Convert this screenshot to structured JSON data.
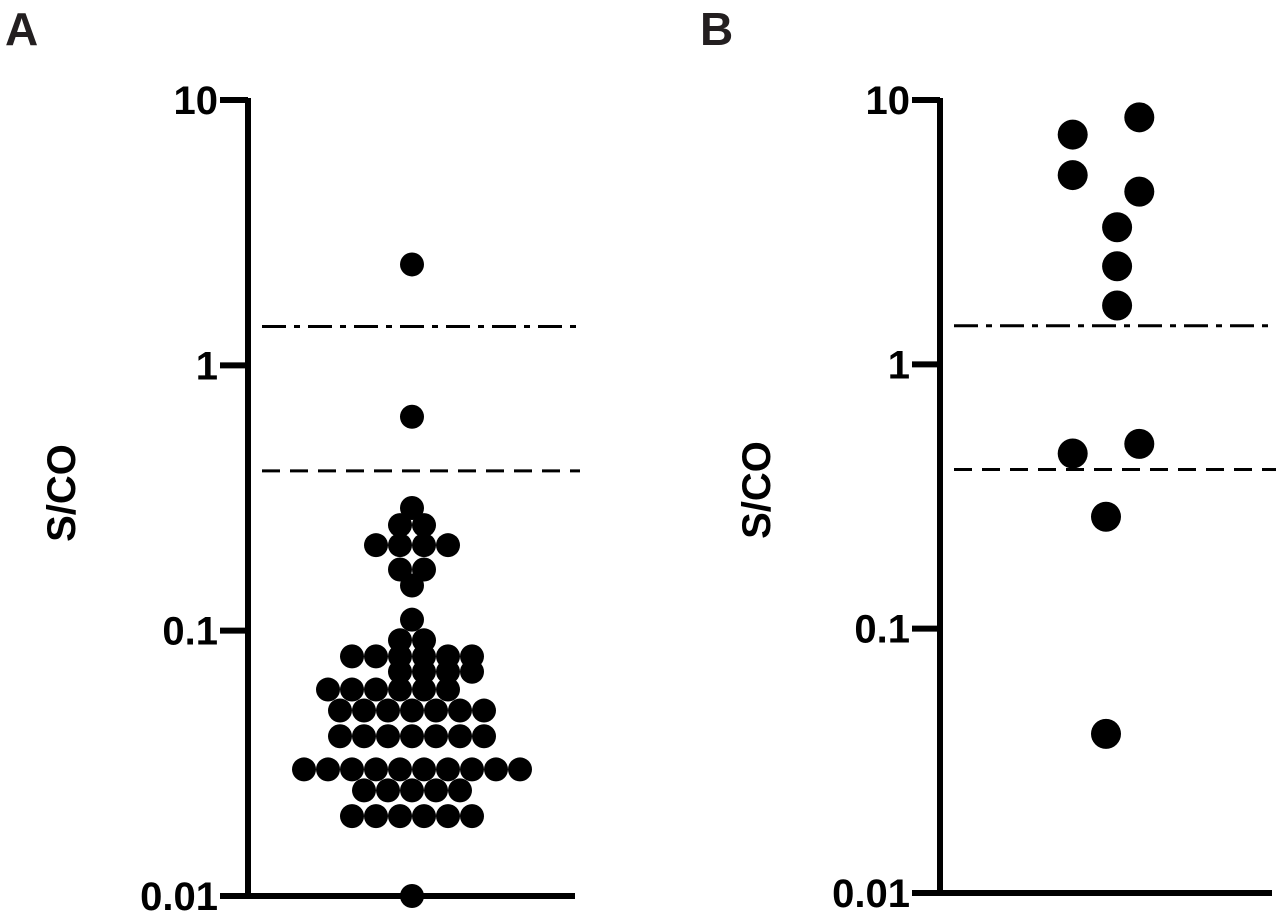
{
  "chart_data": [
    {
      "panel": "A",
      "type": "scatter",
      "ylabel": "S/CO",
      "yscale": "log",
      "ylim": [
        0.01,
        10
      ],
      "ytick_labels": [
        "10",
        "1",
        "0.1",
        "0.01"
      ],
      "yticks": [
        10,
        1,
        0.1,
        0.01
      ],
      "reference_lines": [
        {
          "style": "dash-dot",
          "y": 1.4
        },
        {
          "style": "dashed",
          "y": 0.4
        }
      ],
      "points": [
        {
          "x": 0,
          "y": 2.4
        },
        {
          "x": 0,
          "y": 0.64
        },
        {
          "x": 0,
          "y": 0.29
        },
        {
          "x": -0.3,
          "y": 0.25
        },
        {
          "x": 0.3,
          "y": 0.25
        },
        {
          "x": -0.9,
          "y": 0.21
        },
        {
          "x": -0.3,
          "y": 0.21
        },
        {
          "x": 0.3,
          "y": 0.21
        },
        {
          "x": 0.9,
          "y": 0.21
        },
        {
          "x": -0.3,
          "y": 0.17
        },
        {
          "x": 0.3,
          "y": 0.17
        },
        {
          "x": 0,
          "y": 0.148
        },
        {
          "x": 0,
          "y": 0.11
        },
        {
          "x": -0.3,
          "y": 0.092
        },
        {
          "x": 0.3,
          "y": 0.092
        },
        {
          "x": -1.5,
          "y": 0.08
        },
        {
          "x": -0.9,
          "y": 0.08
        },
        {
          "x": -0.3,
          "y": 0.08
        },
        {
          "x": 0.3,
          "y": 0.08
        },
        {
          "x": 0.9,
          "y": 0.08
        },
        {
          "x": 1.5,
          "y": 0.08
        },
        {
          "x": -0.3,
          "y": 0.07
        },
        {
          "x": 0.3,
          "y": 0.07
        },
        {
          "x": 0.9,
          "y": 0.07
        },
        {
          "x": 1.5,
          "y": 0.07
        },
        {
          "x": -2.1,
          "y": 0.06
        },
        {
          "x": -1.5,
          "y": 0.06
        },
        {
          "x": -0.9,
          "y": 0.06
        },
        {
          "x": -0.3,
          "y": 0.06
        },
        {
          "x": 0.3,
          "y": 0.06
        },
        {
          "x": 0.9,
          "y": 0.06
        },
        {
          "x": -1.8,
          "y": 0.05
        },
        {
          "x": -1.2,
          "y": 0.05
        },
        {
          "x": -0.6,
          "y": 0.05
        },
        {
          "x": 0,
          "y": 0.05
        },
        {
          "x": 0.6,
          "y": 0.05
        },
        {
          "x": 1.2,
          "y": 0.05
        },
        {
          "x": 1.8,
          "y": 0.05
        },
        {
          "x": -1.8,
          "y": 0.04
        },
        {
          "x": -1.2,
          "y": 0.04
        },
        {
          "x": -0.6,
          "y": 0.04
        },
        {
          "x": 0,
          "y": 0.04
        },
        {
          "x": 0.6,
          "y": 0.04
        },
        {
          "x": 1.2,
          "y": 0.04
        },
        {
          "x": 1.8,
          "y": 0.04
        },
        {
          "x": -2.7,
          "y": 0.03
        },
        {
          "x": -2.1,
          "y": 0.03
        },
        {
          "x": -1.5,
          "y": 0.03
        },
        {
          "x": -0.9,
          "y": 0.03
        },
        {
          "x": -0.3,
          "y": 0.03
        },
        {
          "x": 0.3,
          "y": 0.03
        },
        {
          "x": 0.9,
          "y": 0.03
        },
        {
          "x": 1.5,
          "y": 0.03
        },
        {
          "x": 2.1,
          "y": 0.03
        },
        {
          "x": 2.7,
          "y": 0.03
        },
        {
          "x": -1.2,
          "y": 0.025
        },
        {
          "x": -0.6,
          "y": 0.025
        },
        {
          "x": 0,
          "y": 0.025
        },
        {
          "x": 0.6,
          "y": 0.025
        },
        {
          "x": 1.2,
          "y": 0.025
        },
        {
          "x": -1.5,
          "y": 0.02
        },
        {
          "x": -0.9,
          "y": 0.02
        },
        {
          "x": -0.3,
          "y": 0.02
        },
        {
          "x": 0.3,
          "y": 0.02
        },
        {
          "x": 0.9,
          "y": 0.02
        },
        {
          "x": 1.5,
          "y": 0.02
        },
        {
          "x": 0,
          "y": 0.01
        }
      ]
    },
    {
      "panel": "B",
      "type": "scatter",
      "ylabel": "S/CO",
      "yscale": "log",
      "ylim": [
        0.01,
        10
      ],
      "ytick_labels": [
        "10",
        "1",
        "0.1",
        "0.01"
      ],
      "yticks": [
        10,
        1,
        0.1,
        0.01
      ],
      "reference_lines": [
        {
          "style": "dash-dot",
          "y": 1.4
        },
        {
          "style": "dashed",
          "y": 0.4
        }
      ],
      "points": [
        {
          "x": 1.8,
          "y": 8.6
        },
        {
          "x": -1.8,
          "y": 7.4
        },
        {
          "x": -1.8,
          "y": 5.2
        },
        {
          "x": 1.8,
          "y": 4.5
        },
        {
          "x": 0.6,
          "y": 3.3
        },
        {
          "x": 0.6,
          "y": 2.35
        },
        {
          "x": 0.6,
          "y": 1.67
        },
        {
          "x": 1.8,
          "y": 0.5
        },
        {
          "x": -1.8,
          "y": 0.46
        },
        {
          "x": 0,
          "y": 0.265
        },
        {
          "x": 0,
          "y": 0.04
        }
      ]
    }
  ]
}
